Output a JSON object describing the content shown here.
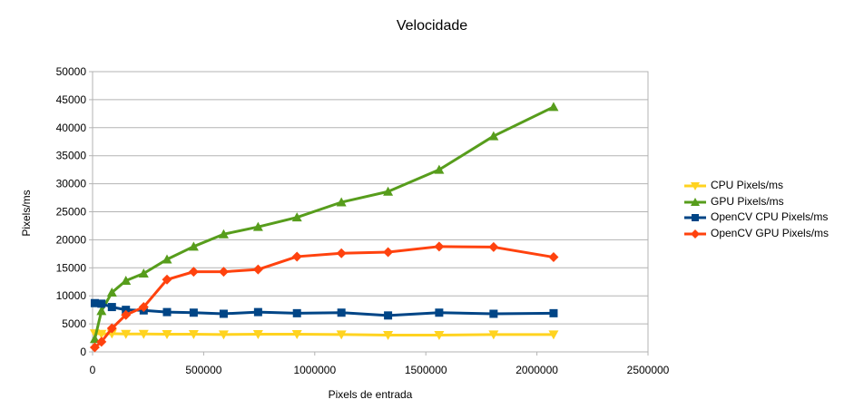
{
  "chart_data": {
    "type": "line",
    "title": "Velocidade",
    "xlabel": "Pixels de entrada",
    "ylabel": "Pixels/ms",
    "xlim": [
      0,
      2500000
    ],
    "ylim": [
      0,
      50000
    ],
    "xticks": [
      0,
      500000,
      1000000,
      1500000,
      2000000,
      2500000
    ],
    "yticks": [
      0,
      5000,
      10000,
      15000,
      20000,
      25000,
      30000,
      35000,
      40000,
      45000,
      50000
    ],
    "x": [
      10000,
      40000,
      87000,
      150000,
      230000,
      335000,
      455000,
      590000,
      745000,
      920000,
      1120000,
      1330000,
      1560000,
      1805000,
      2075000
    ],
    "grid": true,
    "legend_position": "right",
    "series": [
      {
        "name": "CPU Pixels/ms",
        "color": "#ffd320",
        "marker": "triangle-down",
        "values": [
          3300,
          3200,
          3250,
          3200,
          3200,
          3150,
          3150,
          3100,
          3150,
          3150,
          3100,
          3000,
          3000,
          3100,
          3100
        ]
      },
      {
        "name": "GPU Pixels/ms",
        "color": "#579d1c",
        "marker": "triangle-up",
        "values": [
          2300,
          7300,
          10600,
          12700,
          14000,
          16500,
          18800,
          21000,
          22300,
          24000,
          26700,
          28600,
          32500,
          38500,
          43700
        ]
      },
      {
        "name": "OpenCV CPU Pixels/ms",
        "color": "#004586",
        "marker": "square",
        "values": [
          8700,
          8600,
          8000,
          7500,
          7400,
          7100,
          7000,
          6800,
          7100,
          6900,
          7000,
          6500,
          7000,
          6800,
          6900
        ]
      },
      {
        "name": "OpenCV GPU Pixels/ms",
        "color": "#ff420e",
        "marker": "diamond",
        "values": [
          800,
          1800,
          4200,
          6600,
          8000,
          12900,
          14300,
          14300,
          14700,
          17000,
          17600,
          17800,
          18800,
          18700,
          16900
        ]
      }
    ]
  }
}
